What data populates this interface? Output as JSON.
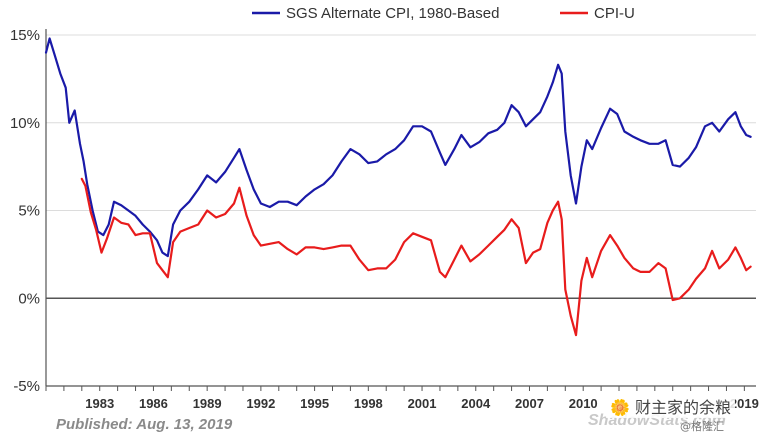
{
  "chart_data": {
    "type": "line",
    "title": "",
    "xlabel": "",
    "ylabel": "",
    "x_range": [
      1980.0,
      2019.65
    ],
    "ylim": [
      -5,
      15
    ],
    "y_ticks": [
      15,
      10,
      5,
      0,
      -5
    ],
    "y_tick_labels": [
      "15%",
      "10%",
      "5%",
      "0%",
      "-5%"
    ],
    "x_ticks": [
      1983,
      1986,
      1989,
      1992,
      1995,
      1998,
      2001,
      2004,
      2007,
      2010,
      2019
    ],
    "x_tick_labels": [
      "1983",
      "1986",
      "1989",
      "1992",
      "1995",
      "1998",
      "2001",
      "2004",
      "2007",
      "2010",
      "2019"
    ],
    "grid": "horizontal",
    "legend_position": "top",
    "series": [
      {
        "name": "SGS Alternate CPI, 1980-Based",
        "color": "#1a1aa8",
        "points": [
          [
            1980.0,
            14.0
          ],
          [
            1980.2,
            14.8
          ],
          [
            1980.5,
            13.8
          ],
          [
            1980.8,
            12.8
          ],
          [
            1981.1,
            12.0
          ],
          [
            1981.3,
            10.0
          ],
          [
            1981.6,
            10.7
          ],
          [
            1981.9,
            8.8
          ],
          [
            1982.1,
            7.8
          ],
          [
            1982.3,
            6.5
          ],
          [
            1982.6,
            5.0
          ],
          [
            1982.9,
            3.8
          ],
          [
            1983.2,
            3.6
          ],
          [
            1983.5,
            4.2
          ],
          [
            1983.8,
            5.5
          ],
          [
            1984.2,
            5.3
          ],
          [
            1984.6,
            5.0
          ],
          [
            1985.0,
            4.7
          ],
          [
            1985.4,
            4.2
          ],
          [
            1985.8,
            3.8
          ],
          [
            1986.2,
            3.3
          ],
          [
            1986.5,
            2.6
          ],
          [
            1986.8,
            2.4
          ],
          [
            1987.1,
            4.2
          ],
          [
            1987.5,
            5.0
          ],
          [
            1988.0,
            5.5
          ],
          [
            1988.5,
            6.2
          ],
          [
            1989.0,
            7.0
          ],
          [
            1989.5,
            6.6
          ],
          [
            1990.0,
            7.2
          ],
          [
            1990.5,
            8.0
          ],
          [
            1990.8,
            8.5
          ],
          [
            1991.2,
            7.3
          ],
          [
            1991.6,
            6.2
          ],
          [
            1992.0,
            5.4
          ],
          [
            1992.5,
            5.2
          ],
          [
            1993.0,
            5.5
          ],
          [
            1993.5,
            5.5
          ],
          [
            1994.0,
            5.3
          ],
          [
            1994.5,
            5.8
          ],
          [
            1995.0,
            6.2
          ],
          [
            1995.5,
            6.5
          ],
          [
            1996.0,
            7.0
          ],
          [
            1996.5,
            7.8
          ],
          [
            1997.0,
            8.5
          ],
          [
            1997.5,
            8.2
          ],
          [
            1998.0,
            7.7
          ],
          [
            1998.5,
            7.8
          ],
          [
            1999.0,
            8.2
          ],
          [
            1999.5,
            8.5
          ],
          [
            2000.0,
            9.0
          ],
          [
            2000.5,
            9.8
          ],
          [
            2001.0,
            9.8
          ],
          [
            2001.5,
            9.5
          ],
          [
            2002.0,
            8.3
          ],
          [
            2002.3,
            7.6
          ],
          [
            2002.8,
            8.5
          ],
          [
            2003.2,
            9.3
          ],
          [
            2003.7,
            8.6
          ],
          [
            2004.2,
            8.9
          ],
          [
            2004.7,
            9.4
          ],
          [
            2005.2,
            9.6
          ],
          [
            2005.6,
            10.0
          ],
          [
            2006.0,
            11.0
          ],
          [
            2006.4,
            10.6
          ],
          [
            2006.8,
            9.8
          ],
          [
            2007.2,
            10.2
          ],
          [
            2007.6,
            10.6
          ],
          [
            2008.0,
            11.5
          ],
          [
            2008.3,
            12.3
          ],
          [
            2008.6,
            13.3
          ],
          [
            2008.8,
            12.8
          ],
          [
            2009.0,
            9.5
          ],
          [
            2009.3,
            7.0
          ],
          [
            2009.6,
            5.4
          ],
          [
            2009.9,
            7.5
          ],
          [
            2010.2,
            9.0
          ],
          [
            2010.5,
            8.5
          ],
          [
            2011.0,
            9.7
          ],
          [
            2011.5,
            10.8
          ],
          [
            2011.9,
            10.5
          ],
          [
            2012.3,
            9.5
          ],
          [
            2012.8,
            9.2
          ],
          [
            2013.2,
            9.0
          ],
          [
            2013.7,
            8.8
          ],
          [
            2014.2,
            8.8
          ],
          [
            2014.6,
            9.0
          ],
          [
            2015.0,
            7.6
          ],
          [
            2015.4,
            7.5
          ],
          [
            2015.9,
            8.0
          ],
          [
            2016.3,
            8.6
          ],
          [
            2016.8,
            9.8
          ],
          [
            2017.2,
            10.0
          ],
          [
            2017.6,
            9.5
          ],
          [
            2018.1,
            10.2
          ],
          [
            2018.5,
            10.6
          ],
          [
            2018.8,
            9.8
          ],
          [
            2019.1,
            9.3
          ],
          [
            2019.35,
            9.2
          ]
        ]
      },
      {
        "name": "CPI-U",
        "color": "#e81c1c",
        "points": [
          [
            1982.0,
            6.8
          ],
          [
            1982.2,
            6.4
          ],
          [
            1982.5,
            4.9
          ],
          [
            1982.8,
            3.9
          ],
          [
            1983.1,
            2.6
          ],
          [
            1983.4,
            3.4
          ],
          [
            1983.8,
            4.6
          ],
          [
            1984.2,
            4.3
          ],
          [
            1984.6,
            4.2
          ],
          [
            1985.0,
            3.6
          ],
          [
            1985.4,
            3.7
          ],
          [
            1985.8,
            3.7
          ],
          [
            1986.2,
            2.0
          ],
          [
            1986.5,
            1.6
          ],
          [
            1986.8,
            1.2
          ],
          [
            1987.1,
            3.2
          ],
          [
            1987.5,
            3.8
          ],
          [
            1988.0,
            4.0
          ],
          [
            1988.5,
            4.2
          ],
          [
            1989.0,
            5.0
          ],
          [
            1989.5,
            4.6
          ],
          [
            1990.0,
            4.8
          ],
          [
            1990.5,
            5.4
          ],
          [
            1990.8,
            6.3
          ],
          [
            1991.2,
            4.7
          ],
          [
            1991.6,
            3.6
          ],
          [
            1992.0,
            3.0
          ],
          [
            1992.5,
            3.1
          ],
          [
            1993.0,
            3.2
          ],
          [
            1993.5,
            2.8
          ],
          [
            1994.0,
            2.5
          ],
          [
            1994.5,
            2.9
          ],
          [
            1995.0,
            2.9
          ],
          [
            1995.5,
            2.8
          ],
          [
            1996.0,
            2.9
          ],
          [
            1996.5,
            3.0
          ],
          [
            1997.0,
            3.0
          ],
          [
            1997.5,
            2.2
          ],
          [
            1998.0,
            1.6
          ],
          [
            1998.5,
            1.7
          ],
          [
            1999.0,
            1.7
          ],
          [
            1999.5,
            2.2
          ],
          [
            2000.0,
            3.2
          ],
          [
            2000.5,
            3.7
          ],
          [
            2001.0,
            3.5
          ],
          [
            2001.5,
            3.3
          ],
          [
            2002.0,
            1.5
          ],
          [
            2002.3,
            1.2
          ],
          [
            2002.8,
            2.2
          ],
          [
            2003.2,
            3.0
          ],
          [
            2003.7,
            2.1
          ],
          [
            2004.2,
            2.5
          ],
          [
            2004.7,
            3.0
          ],
          [
            2005.2,
            3.5
          ],
          [
            2005.6,
            3.9
          ],
          [
            2006.0,
            4.5
          ],
          [
            2006.4,
            4.0
          ],
          [
            2006.8,
            2.0
          ],
          [
            2007.2,
            2.6
          ],
          [
            2007.6,
            2.8
          ],
          [
            2008.0,
            4.3
          ],
          [
            2008.3,
            5.0
          ],
          [
            2008.6,
            5.5
          ],
          [
            2008.8,
            4.5
          ],
          [
            2009.0,
            0.5
          ],
          [
            2009.3,
            -1.0
          ],
          [
            2009.6,
            -2.1
          ],
          [
            2009.9,
            1.0
          ],
          [
            2010.2,
            2.3
          ],
          [
            2010.5,
            1.2
          ],
          [
            2011.0,
            2.7
          ],
          [
            2011.5,
            3.6
          ],
          [
            2011.9,
            3.0
          ],
          [
            2012.3,
            2.3
          ],
          [
            2012.8,
            1.7
          ],
          [
            2013.2,
            1.5
          ],
          [
            2013.7,
            1.5
          ],
          [
            2014.2,
            2.0
          ],
          [
            2014.6,
            1.7
          ],
          [
            2015.0,
            -0.1
          ],
          [
            2015.4,
            0.0
          ],
          [
            2015.9,
            0.5
          ],
          [
            2016.3,
            1.1
          ],
          [
            2016.8,
            1.7
          ],
          [
            2017.2,
            2.7
          ],
          [
            2017.6,
            1.7
          ],
          [
            2018.1,
            2.2
          ],
          [
            2018.5,
            2.9
          ],
          [
            2018.8,
            2.3
          ],
          [
            2019.1,
            1.6
          ],
          [
            2019.35,
            1.8
          ]
        ]
      }
    ]
  },
  "footer": {
    "published": "Published: Aug. 13, 2019",
    "brand": "ShadowStats.com",
    "watermark": "🌼 财主家的余粮",
    "watermark_sub": "@格隆汇"
  }
}
